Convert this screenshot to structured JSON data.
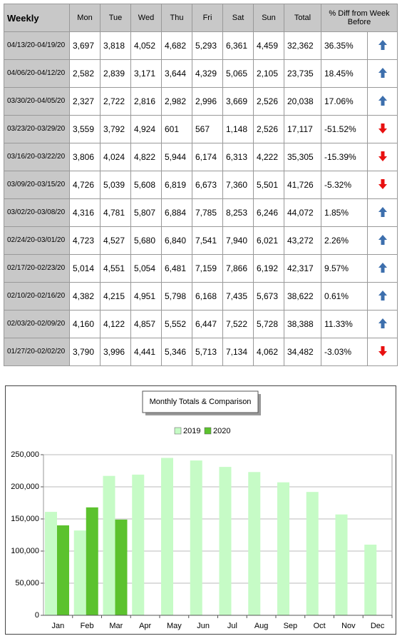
{
  "table": {
    "header": [
      "Weekly",
      "Mon",
      "Tue",
      "Wed",
      "Thu",
      "Fri",
      "Sat",
      "Sun",
      "Total",
      "% Diff from Week Before"
    ],
    "rows": [
      [
        "04/13/20-04/19/20",
        "3,697",
        "3,818",
        "4,052",
        "4,682",
        "5,293",
        "6,361",
        "4,459",
        "32,362",
        "36.35%"
      ],
      [
        "04/06/20-04/12/20",
        "2,582",
        "2,839",
        "3,171",
        "3,644",
        "4,329",
        "5,065",
        "2,105",
        "23,735",
        "18.45%"
      ],
      [
        "03/30/20-04/05/20",
        "2,327",
        "2,722",
        "2,816",
        "2,982",
        "2,996",
        "3,669",
        "2,526",
        "20,038",
        "17.06%"
      ],
      [
        "03/23/20-03/29/20",
        "3,559",
        "3,792",
        "4,924",
        "601",
        "567",
        "1,148",
        "2,526",
        "17,117",
        "-51.52%"
      ],
      [
        "03/16/20-03/22/20",
        "3,806",
        "4,024",
        "4,822",
        "5,944",
        "6,174",
        "6,313",
        "4,222",
        "35,305",
        "-15.39%"
      ],
      [
        "03/09/20-03/15/20",
        "4,726",
        "5,039",
        "5,608",
        "6,819",
        "6,673",
        "7,360",
        "5,501",
        "41,726",
        "-5.32%"
      ],
      [
        "03/02/20-03/08/20",
        "4,316",
        "4,781",
        "5,807",
        "6,884",
        "7,785",
        "8,253",
        "6,246",
        "44,072",
        "1.85%"
      ],
      [
        "02/24/20-03/01/20",
        "4,723",
        "4,527",
        "5,680",
        "6,840",
        "7,541",
        "7,940",
        "6,021",
        "43,272",
        "2.26%"
      ],
      [
        "02/17/20-02/23/20",
        "5,014",
        "4,551",
        "5,054",
        "6,481",
        "7,159",
        "7,866",
        "6,192",
        "42,317",
        "9.57%"
      ],
      [
        "02/10/20-02/16/20",
        "4,382",
        "4,215",
        "4,951",
        "5,798",
        "6,168",
        "7,435",
        "5,673",
        "38,622",
        "0.61%"
      ],
      [
        "02/03/20-02/09/20",
        "4,160",
        "4,122",
        "4,857",
        "5,552",
        "6,447",
        "7,522",
        "5,728",
        "38,388",
        "11.33%"
      ],
      [
        "01/27/20-02/02/20",
        "3,790",
        "3,996",
        "4,441",
        "5,346",
        "5,713",
        "7,134",
        "4,062",
        "34,482",
        "-3.03%"
      ]
    ],
    "arrows": [
      "up",
      "up",
      "up",
      "down",
      "down",
      "down",
      "up",
      "up",
      "up",
      "up",
      "up",
      "down"
    ]
  },
  "chart_data": {
    "type": "bar",
    "title": "Monthly Totals & Comparison",
    "categories": [
      "Jan",
      "Feb",
      "Mar",
      "Apr",
      "May",
      "Jun",
      "Jul",
      "Aug",
      "Sep",
      "Oct",
      "Nov",
      "Dec"
    ],
    "series": [
      {
        "name": "2019",
        "color": "#c6fbc6",
        "values": [
          161000,
          132000,
          217000,
          219000,
          245000,
          241000,
          231000,
          223000,
          207000,
          192000,
          157000,
          110000
        ]
      },
      {
        "name": "2020",
        "color": "#5cc22e",
        "values": [
          140000,
          168000,
          149000,
          null,
          null,
          null,
          null,
          null,
          null,
          null,
          null,
          null
        ]
      }
    ],
    "ylim": [
      0,
      250000
    ],
    "yticks": [
      0,
      {
        "value": 50000,
        "label": "50,000"
      },
      {
        "value": 100000,
        "label": "100,000"
      },
      {
        "value": 150000,
        "label": "150,000"
      },
      {
        "value": 200000,
        "label": "200,000"
      },
      {
        "value": 250000,
        "label": "250,000"
      }
    ],
    "grid": true,
    "legend": "top"
  }
}
